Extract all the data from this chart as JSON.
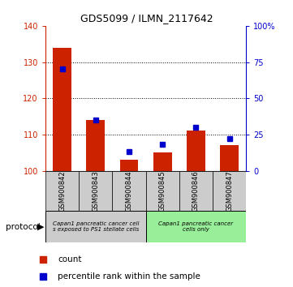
{
  "title": "GDS5099 / ILMN_2117642",
  "samples": [
    "GSM900842",
    "GSM900843",
    "GSM900844",
    "GSM900845",
    "GSM900846",
    "GSM900847"
  ],
  "counts": [
    134.0,
    114.0,
    103.0,
    105.0,
    111.0,
    107.0
  ],
  "percentiles": [
    70,
    35,
    13,
    18,
    30,
    22
  ],
  "ylim_left": [
    100,
    140
  ],
  "ylim_right": [
    0,
    100
  ],
  "yticks_left": [
    100,
    110,
    120,
    130,
    140
  ],
  "yticks_right": [
    0,
    25,
    50,
    75,
    100
  ],
  "ytick_labels_right": [
    "0",
    "25",
    "50",
    "75",
    "100%"
  ],
  "bar_color": "#cc2200",
  "blue_color": "#0000cc",
  "group1_label": "Capan1 pancreatic cancer cell\ns exposed to PS1 stellate cells",
  "group2_label": "Capan1 pancreatic cancer\ncells only",
  "group1_color": "#cccccc",
  "group2_color": "#99ee99",
  "protocol_label": "protocol",
  "legend_count": "count",
  "legend_pct": "percentile rank within the sample"
}
